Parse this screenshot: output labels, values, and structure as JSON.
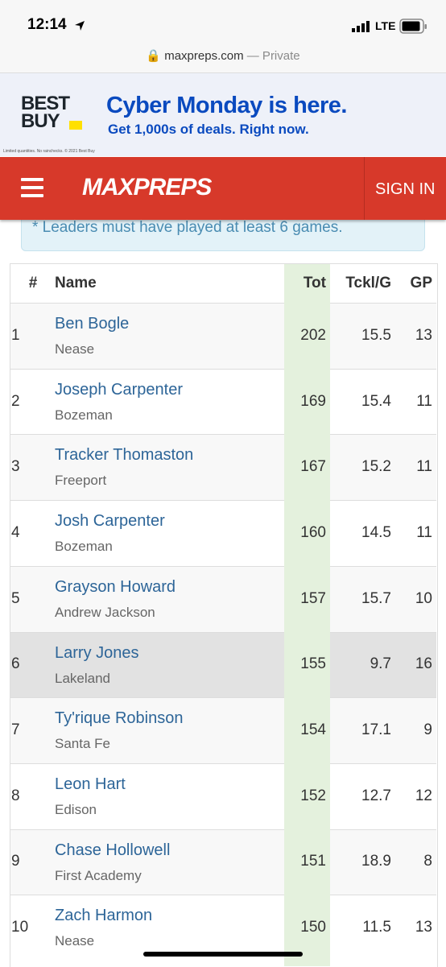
{
  "status_bar": {
    "time": "12:14",
    "network": "LTE"
  },
  "url_bar": {
    "domain": "maxpreps.com",
    "mode": "— Private"
  },
  "ad": {
    "brand": "BEST BUY",
    "headline": "Cyber Monday is here.",
    "subline": "Get 1,000s of deals. Right now.",
    "fine_print": "Limited quantities. No rainchecks. © 2021 Best Buy"
  },
  "header": {
    "logo": "MAXPREPS",
    "sign_in": "SIGN IN"
  },
  "note": "* Leaders must have played at least 6 games.",
  "table": {
    "columns": [
      "#",
      "Name",
      "Tot",
      "Tckl/G",
      "GP"
    ],
    "rows": [
      {
        "rank": 1,
        "name": "Ben Bogle",
        "school": "Nease",
        "tot": 202,
        "tpg": 15.5,
        "gp": 13
      },
      {
        "rank": 2,
        "name": "Joseph Carpenter",
        "school": "Bozeman",
        "tot": 169,
        "tpg": 15.4,
        "gp": 11
      },
      {
        "rank": 3,
        "name": "Tracker Thomaston",
        "school": "Freeport",
        "tot": 167,
        "tpg": 15.2,
        "gp": 11
      },
      {
        "rank": 4,
        "name": "Josh Carpenter",
        "school": "Bozeman",
        "tot": 160,
        "tpg": 14.5,
        "gp": 11
      },
      {
        "rank": 5,
        "name": "Grayson Howard",
        "school": "Andrew Jackson",
        "tot": 157,
        "tpg": 15.7,
        "gp": 10
      },
      {
        "rank": 6,
        "name": "Larry Jones",
        "school": "Lakeland",
        "tot": 155,
        "tpg": 9.7,
        "gp": 16
      },
      {
        "rank": 7,
        "name": "Ty'rique Robinson",
        "school": "Santa Fe",
        "tot": 154,
        "tpg": 17.1,
        "gp": 9
      },
      {
        "rank": 8,
        "name": "Leon Hart",
        "school": "Edison",
        "tot": 152,
        "tpg": 12.7,
        "gp": 12
      },
      {
        "rank": 9,
        "name": "Chase Hollowell",
        "school": "First Academy",
        "tot": 151,
        "tpg": 18.9,
        "gp": 8
      },
      {
        "rank": 10,
        "name": "Zach Harmon",
        "school": "Nease",
        "tot": 150,
        "tpg": 11.5,
        "gp": 13
      }
    ],
    "highlight_row": 5
  }
}
